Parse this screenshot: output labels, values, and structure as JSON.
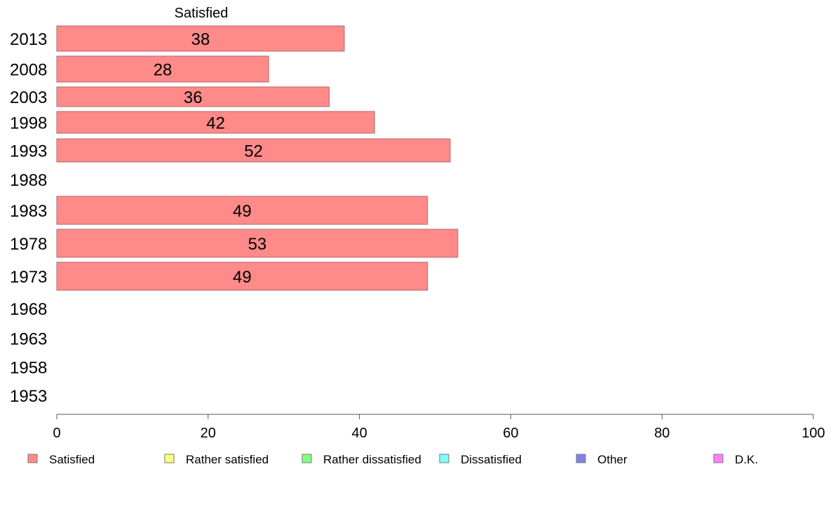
{
  "chart_data": {
    "type": "bar",
    "orientation": "horizontal",
    "title": "Satisfied",
    "categories": [
      "2013",
      "2008",
      "2003",
      "1998",
      "1993",
      "1988",
      "1983",
      "1978",
      "1973",
      "1968",
      "1963",
      "1958",
      "1953"
    ],
    "series": [
      {
        "name": "Satisfied",
        "color": "#ff8a8a",
        "values": [
          38,
          28,
          36,
          42,
          52,
          null,
          49,
          53,
          49,
          null,
          null,
          null,
          null
        ]
      }
    ],
    "xlim": [
      0,
      100
    ],
    "xticks": [
      0,
      20,
      40,
      60,
      80,
      100
    ],
    "grid": false,
    "legend": {
      "placement": "bottom",
      "items": [
        {
          "label": "Satisfied",
          "color": "#ff8a8a"
        },
        {
          "label": "Rather satisfied",
          "color": "#ffff80"
        },
        {
          "label": "Rather dissatisfied",
          "color": "#80ff80"
        },
        {
          "label": "Dissatisfied",
          "color": "#80ffff"
        },
        {
          "label": "Other",
          "color": "#8080ee"
        },
        {
          "label": "D.K.",
          "color": "#ff80ff"
        }
      ]
    }
  }
}
